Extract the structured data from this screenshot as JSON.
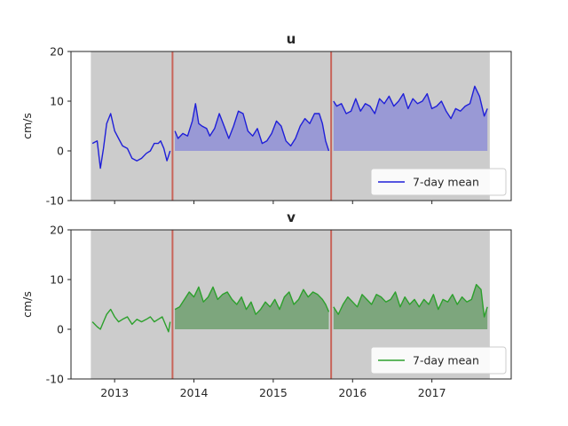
{
  "chart_data": [
    {
      "type": "line",
      "title": "u",
      "ylabel": "cm/s",
      "xlabel": "",
      "ylim": [
        -10,
        20
      ],
      "yticks": [
        -10,
        0,
        10,
        20
      ],
      "xlim": [
        2012.45,
        2018.0
      ],
      "xticks": [
        2013,
        2014,
        2015,
        2016,
        2017
      ],
      "xtick_labels": [],
      "grid": false,
      "legend_position": "lower-right",
      "color": "#1f1fd8",
      "fill_color": "#8f8fd6",
      "background_color": "#cccccc",
      "marker_color": "#c8645a",
      "shaded_span": [
        2012.7,
        2017.73
      ],
      "deployment_markers": [
        2013.73,
        2015.73
      ],
      "filled_segments": [
        [
          2013.76,
          2015.7
        ],
        [
          2015.76,
          2017.7
        ]
      ],
      "series": [
        {
          "name": "7-day mean",
          "x": [
            2012.72,
            2012.78,
            2012.82,
            2012.86,
            2012.9,
            2012.95,
            2013.0,
            2013.05,
            2013.1,
            2013.16,
            2013.22,
            2013.28,
            2013.34,
            2013.4,
            2013.45,
            2013.5,
            2013.55,
            2013.58,
            2013.62,
            2013.66,
            2013.7,
            2013.76,
            2013.8,
            2013.86,
            2013.92,
            2013.98,
            2014.02,
            2014.06,
            2014.1,
            2014.16,
            2014.2,
            2014.26,
            2014.32,
            2014.38,
            2014.44,
            2014.5,
            2014.56,
            2014.62,
            2014.68,
            2014.74,
            2014.8,
            2014.86,
            2014.92,
            2014.98,
            2015.04,
            2015.1,
            2015.16,
            2015.22,
            2015.28,
            2015.34,
            2015.4,
            2015.46,
            2015.52,
            2015.58,
            2015.62,
            2015.66,
            2015.7,
            2015.76,
            2015.8,
            2015.86,
            2015.92,
            2015.98,
            2016.04,
            2016.1,
            2016.16,
            2016.22,
            2016.28,
            2016.34,
            2016.4,
            2016.46,
            2016.52,
            2016.58,
            2016.64,
            2016.7,
            2016.76,
            2016.82,
            2016.88,
            2016.94,
            2017.0,
            2017.06,
            2017.12,
            2017.18,
            2017.24,
            2017.3,
            2017.36,
            2017.42,
            2017.48,
            2017.54,
            2017.6,
            2017.66,
            2017.7
          ],
          "y": [
            1.5,
            2.0,
            -3.5,
            0.5,
            5.5,
            7.5,
            4.0,
            2.5,
            1.0,
            0.5,
            -1.5,
            -2.0,
            -1.5,
            -0.5,
            0.0,
            1.5,
            1.5,
            2.0,
            0.5,
            -2.0,
            0.0,
            4.0,
            2.5,
            3.5,
            3.0,
            6.0,
            9.5,
            5.5,
            5.0,
            4.5,
            3.0,
            4.5,
            7.5,
            5.0,
            2.5,
            5.0,
            8.0,
            7.5,
            4.0,
            3.0,
            4.5,
            1.5,
            2.0,
            3.5,
            6.0,
            5.0,
            2.0,
            1.0,
            2.5,
            5.0,
            6.5,
            5.5,
            7.5,
            7.5,
            5.5,
            2.0,
            0.0,
            10.0,
            9.0,
            9.5,
            7.5,
            8.0,
            10.5,
            8.0,
            9.5,
            9.0,
            7.5,
            10.5,
            9.5,
            11.0,
            9.0,
            10.0,
            11.5,
            8.5,
            10.5,
            9.5,
            10.0,
            11.5,
            8.5,
            9.0,
            10.0,
            8.0,
            6.5,
            8.5,
            8.0,
            9.0,
            9.5,
            13.0,
            11.0,
            7.0,
            8.5
          ]
        }
      ]
    },
    {
      "type": "line",
      "title": "v",
      "ylabel": "cm/s",
      "xlabel": "",
      "ylim": [
        -10,
        20
      ],
      "yticks": [
        -10,
        0,
        10,
        20
      ],
      "xlim": [
        2012.45,
        2018.0
      ],
      "xticks": [
        2013,
        2014,
        2015,
        2016,
        2017
      ],
      "xtick_labels": [
        "2013",
        "2014",
        "2015",
        "2016",
        "2017"
      ],
      "grid": false,
      "legend_position": "lower-right",
      "color": "#2ca02c",
      "fill_color": "#6f9f6f",
      "background_color": "#cccccc",
      "marker_color": "#c8645a",
      "shaded_span": [
        2012.7,
        2017.73
      ],
      "deployment_markers": [
        2013.73,
        2015.73
      ],
      "filled_segments": [
        [
          2013.76,
          2015.7
        ],
        [
          2015.76,
          2017.7
        ]
      ],
      "series": [
        {
          "name": "7-day mean",
          "x": [
            2012.72,
            2012.78,
            2012.82,
            2012.86,
            2012.9,
            2012.95,
            2013.0,
            2013.05,
            2013.1,
            2013.16,
            2013.22,
            2013.28,
            2013.34,
            2013.4,
            2013.45,
            2013.5,
            2013.55,
            2013.6,
            2013.64,
            2013.68,
            2013.7,
            2013.76,
            2013.82,
            2013.88,
            2013.94,
            2014.0,
            2014.06,
            2014.12,
            2014.18,
            2014.24,
            2014.3,
            2014.36,
            2014.42,
            2014.48,
            2014.54,
            2014.6,
            2014.66,
            2014.72,
            2014.78,
            2014.84,
            2014.9,
            2014.96,
            2015.02,
            2015.08,
            2015.14,
            2015.2,
            2015.26,
            2015.32,
            2015.38,
            2015.44,
            2015.5,
            2015.56,
            2015.62,
            2015.66,
            2015.7,
            2015.76,
            2015.82,
            2015.88,
            2015.94,
            2016.0,
            2016.06,
            2016.12,
            2016.18,
            2016.24,
            2016.3,
            2016.36,
            2016.42,
            2016.48,
            2016.54,
            2016.6,
            2016.66,
            2016.72,
            2016.78,
            2016.84,
            2016.9,
            2016.96,
            2017.02,
            2017.08,
            2017.14,
            2017.2,
            2017.26,
            2017.32,
            2017.38,
            2017.44,
            2017.5,
            2017.56,
            2017.62,
            2017.66,
            2017.7
          ],
          "y": [
            1.5,
            0.5,
            0.0,
            1.5,
            3.0,
            4.0,
            2.5,
            1.5,
            2.0,
            2.5,
            1.0,
            2.0,
            1.5,
            2.0,
            2.5,
            1.5,
            2.0,
            2.5,
            1.0,
            -0.5,
            1.5,
            4.0,
            4.5,
            6.0,
            7.5,
            6.5,
            8.5,
            5.5,
            6.5,
            8.5,
            6.0,
            7.0,
            7.5,
            6.0,
            5.0,
            6.5,
            4.0,
            5.5,
            3.0,
            4.0,
            5.5,
            4.5,
            6.0,
            4.0,
            6.5,
            7.5,
            5.0,
            6.0,
            8.0,
            6.5,
            7.5,
            7.0,
            6.0,
            5.0,
            3.5,
            4.5,
            3.0,
            5.0,
            6.5,
            5.5,
            4.5,
            7.0,
            6.0,
            5.0,
            7.0,
            6.5,
            5.5,
            6.0,
            7.5,
            4.5,
            6.5,
            5.0,
            6.0,
            4.5,
            6.0,
            5.0,
            7.0,
            4.0,
            6.0,
            5.5,
            7.0,
            5.0,
            6.5,
            5.5,
            6.0,
            9.0,
            8.0,
            2.5,
            4.5
          ]
        }
      ]
    }
  ]
}
